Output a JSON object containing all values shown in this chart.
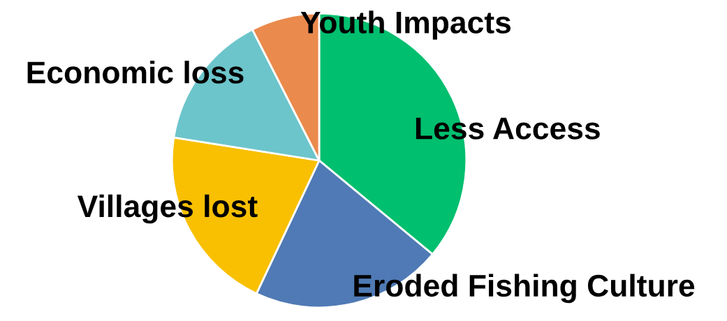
{
  "chart_data": {
    "type": "pie",
    "categories": [
      "Less Access",
      "Eroded Fishing Culture",
      "Villages lost",
      "Economic loss",
      "Youth Impacts"
    ],
    "values": [
      36,
      21,
      20.5,
      15,
      7.5
    ],
    "colors": [
      "#00bf6f",
      "#4f7ab5",
      "#f8c000",
      "#6cc5cb",
      "#ea8a4c"
    ]
  }
}
